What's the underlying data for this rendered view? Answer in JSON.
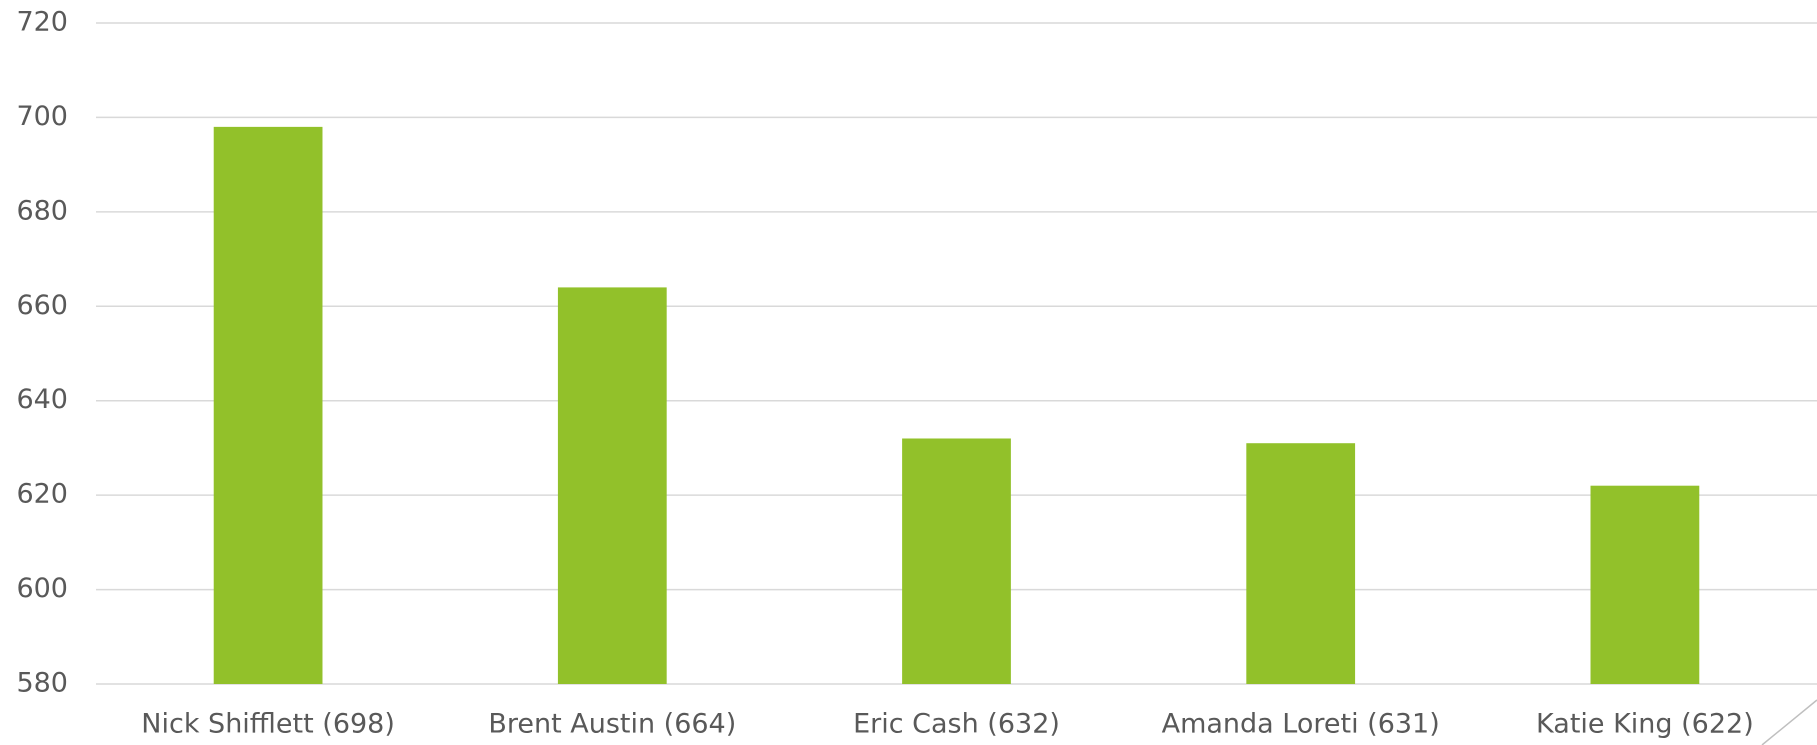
{
  "chart_data": {
    "type": "bar",
    "categories": [
      "Nick Shifflett (698)",
      "Brent Austin (664)",
      "Eric Cash (632)",
      "Amanda Loreti (631)",
      "Katie King (622)"
    ],
    "values": [
      698,
      664,
      632,
      631,
      622
    ],
    "color": "#92c12a",
    "ylim": [
      580,
      720
    ],
    "yticks": [
      580,
      600,
      620,
      640,
      660,
      680,
      700,
      720
    ],
    "grid": true
  }
}
